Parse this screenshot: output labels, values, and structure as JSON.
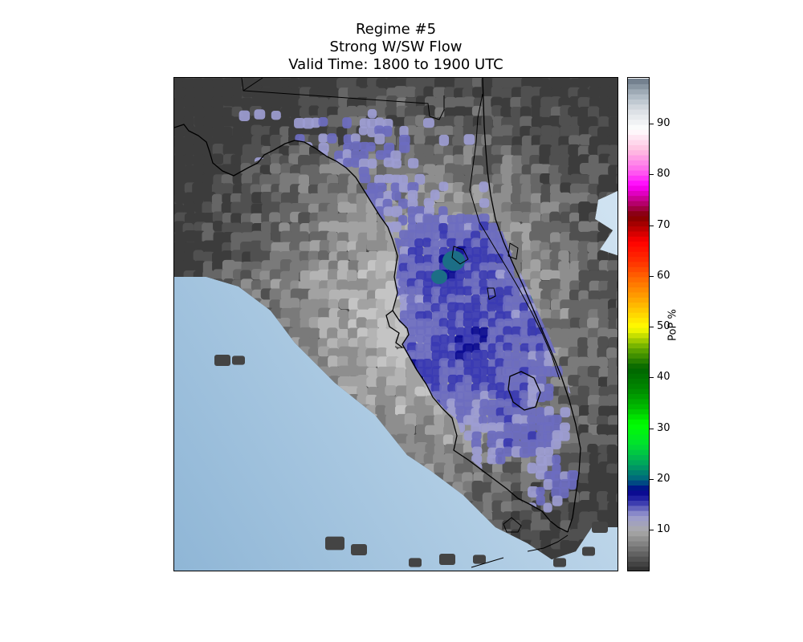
{
  "title": {
    "line1": "Regime #5",
    "line2": "Strong W/SW Flow",
    "line3": "Valid Time: 1800 to 1900 UTC"
  },
  "colorbar": {
    "label": "PoP %",
    "min": 2,
    "max": 99,
    "ticks": [
      "10",
      "20",
      "30",
      "40",
      "50",
      "60",
      "70",
      "80",
      "90"
    ],
    "stops": [
      {
        "v": 2,
        "c": "#2b2b2b"
      },
      {
        "v": 6,
        "c": "#6a6a6a"
      },
      {
        "v": 10,
        "c": "#a9a9a9"
      },
      {
        "v": 13,
        "c": "#9b9bcf"
      },
      {
        "v": 16,
        "c": "#2a2aa8"
      },
      {
        "v": 18,
        "c": "#00008b"
      },
      {
        "v": 20,
        "c": "#006080"
      },
      {
        "v": 23,
        "c": "#00a060"
      },
      {
        "v": 27,
        "c": "#00e030"
      },
      {
        "v": 31,
        "c": "#00ff00"
      },
      {
        "v": 34,
        "c": "#00c000"
      },
      {
        "v": 38,
        "c": "#008800"
      },
      {
        "v": 42,
        "c": "#006400"
      },
      {
        "v": 46,
        "c": "#66aa00"
      },
      {
        "v": 50,
        "c": "#ffff00"
      },
      {
        "v": 53,
        "c": "#ffd000"
      },
      {
        "v": 56,
        "c": "#ffa000"
      },
      {
        "v": 60,
        "c": "#ff6400"
      },
      {
        "v": 63,
        "c": "#ff3000"
      },
      {
        "v": 67,
        "c": "#ff0000"
      },
      {
        "v": 70,
        "c": "#b00000"
      },
      {
        "v": 72,
        "c": "#800000"
      },
      {
        "v": 75,
        "c": "#c00080"
      },
      {
        "v": 78,
        "c": "#ff00ff"
      },
      {
        "v": 81,
        "c": "#ff66ee"
      },
      {
        "v": 85,
        "c": "#ffc0e0"
      },
      {
        "v": 89,
        "c": "#ffffff"
      },
      {
        "v": 93,
        "c": "#d8dde2"
      },
      {
        "v": 96,
        "c": "#a8b4bf"
      },
      {
        "v": 99,
        "c": "#6a7785"
      }
    ]
  },
  "map": {
    "ocean_color": "#bcd6ea",
    "land_gray_dark": "#4a4a4a",
    "land_gray_light": "#b6b6b6",
    "pop_low_blue": "#9d9dd3",
    "pop_mid_blue": "#3a3ab3",
    "pop_high_blue": "#0a0a92",
    "pop_teal": "#1c6e86",
    "coastline_color": "#000000"
  }
}
